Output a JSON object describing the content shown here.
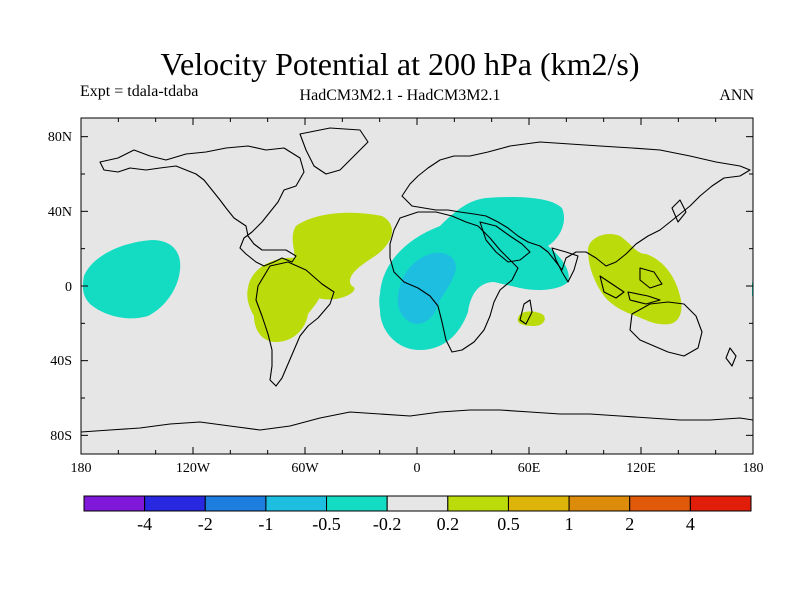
{
  "header": {
    "title": "Velocity Potential at 200 hPa (km2/s)",
    "expt": "Expt = tdala-tdaba",
    "models": "HadCM3M2.1 - HadCM3M2.1",
    "period": "ANN"
  },
  "map": {
    "lat_ticks": [
      "80N",
      "40N",
      "0",
      "40S",
      "80S"
    ],
    "lon_ticks": [
      "180",
      "120W",
      "60W",
      "0",
      "60E",
      "120E",
      "180"
    ]
  },
  "colorbar": {
    "colors": [
      "#7f18d8",
      "#2828e0",
      "#1e7ee0",
      "#1ebee0",
      "#14dcc3",
      "#e6e6e6",
      "#bbdc0a",
      "#dcb40a",
      "#dc8c0a",
      "#e05a0a",
      "#e01e0a"
    ],
    "labels": [
      "-4",
      "-2",
      "-1",
      "-0.5",
      "-0.2",
      "0.2",
      "0.5",
      "1",
      "2",
      "4"
    ]
  },
  "colors": {
    "background": "#e6e6e6",
    "neg_light": "#14dcc3",
    "neg_medium": "#1ebee0",
    "pos_light": "#bbdc0a"
  }
}
